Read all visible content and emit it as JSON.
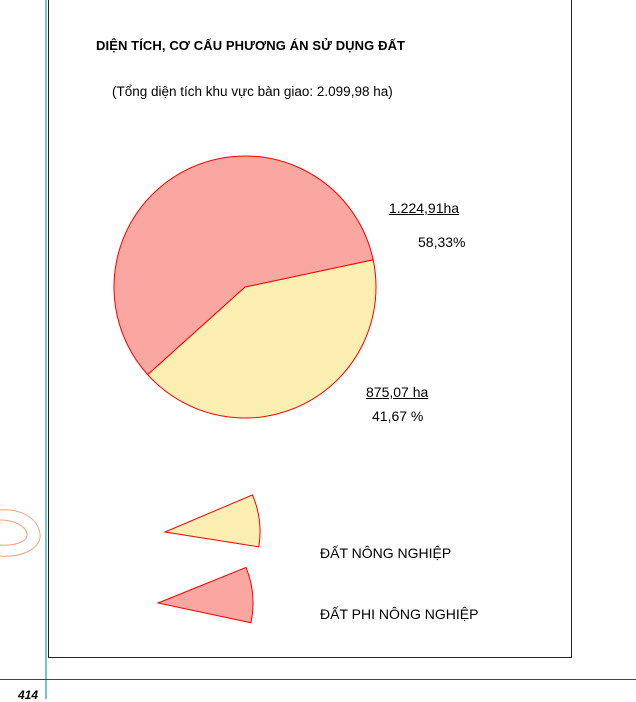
{
  "page": {
    "number": "414"
  },
  "chart_data": {
    "type": "pie",
    "title": "DIỆN TÍCH, CƠ CẤU PHƯƠNG ÁN SỬ DỤNG ĐẤT",
    "subtitle": "(Tổng diện tích khu vực bàn giao: 2.099,98 ha)",
    "slices": [
      {
        "name": "ĐẤT NÔNG NGHIỆP",
        "value": 875.07,
        "value_label": "875,07 ha",
        "percent": 41.67,
        "percent_label": "41,67 %",
        "color": "#fdefb2"
      },
      {
        "name": "ĐẤT PHI NÔNG NGHIỆP",
        "value": 1224.91,
        "value_label": "1.224,91ha",
        "percent": 58.33,
        "percent_label": "58,33%",
        "color": "#f9a7a0"
      }
    ],
    "outline_color": "#ff0000",
    "legend_position": "bottom"
  }
}
